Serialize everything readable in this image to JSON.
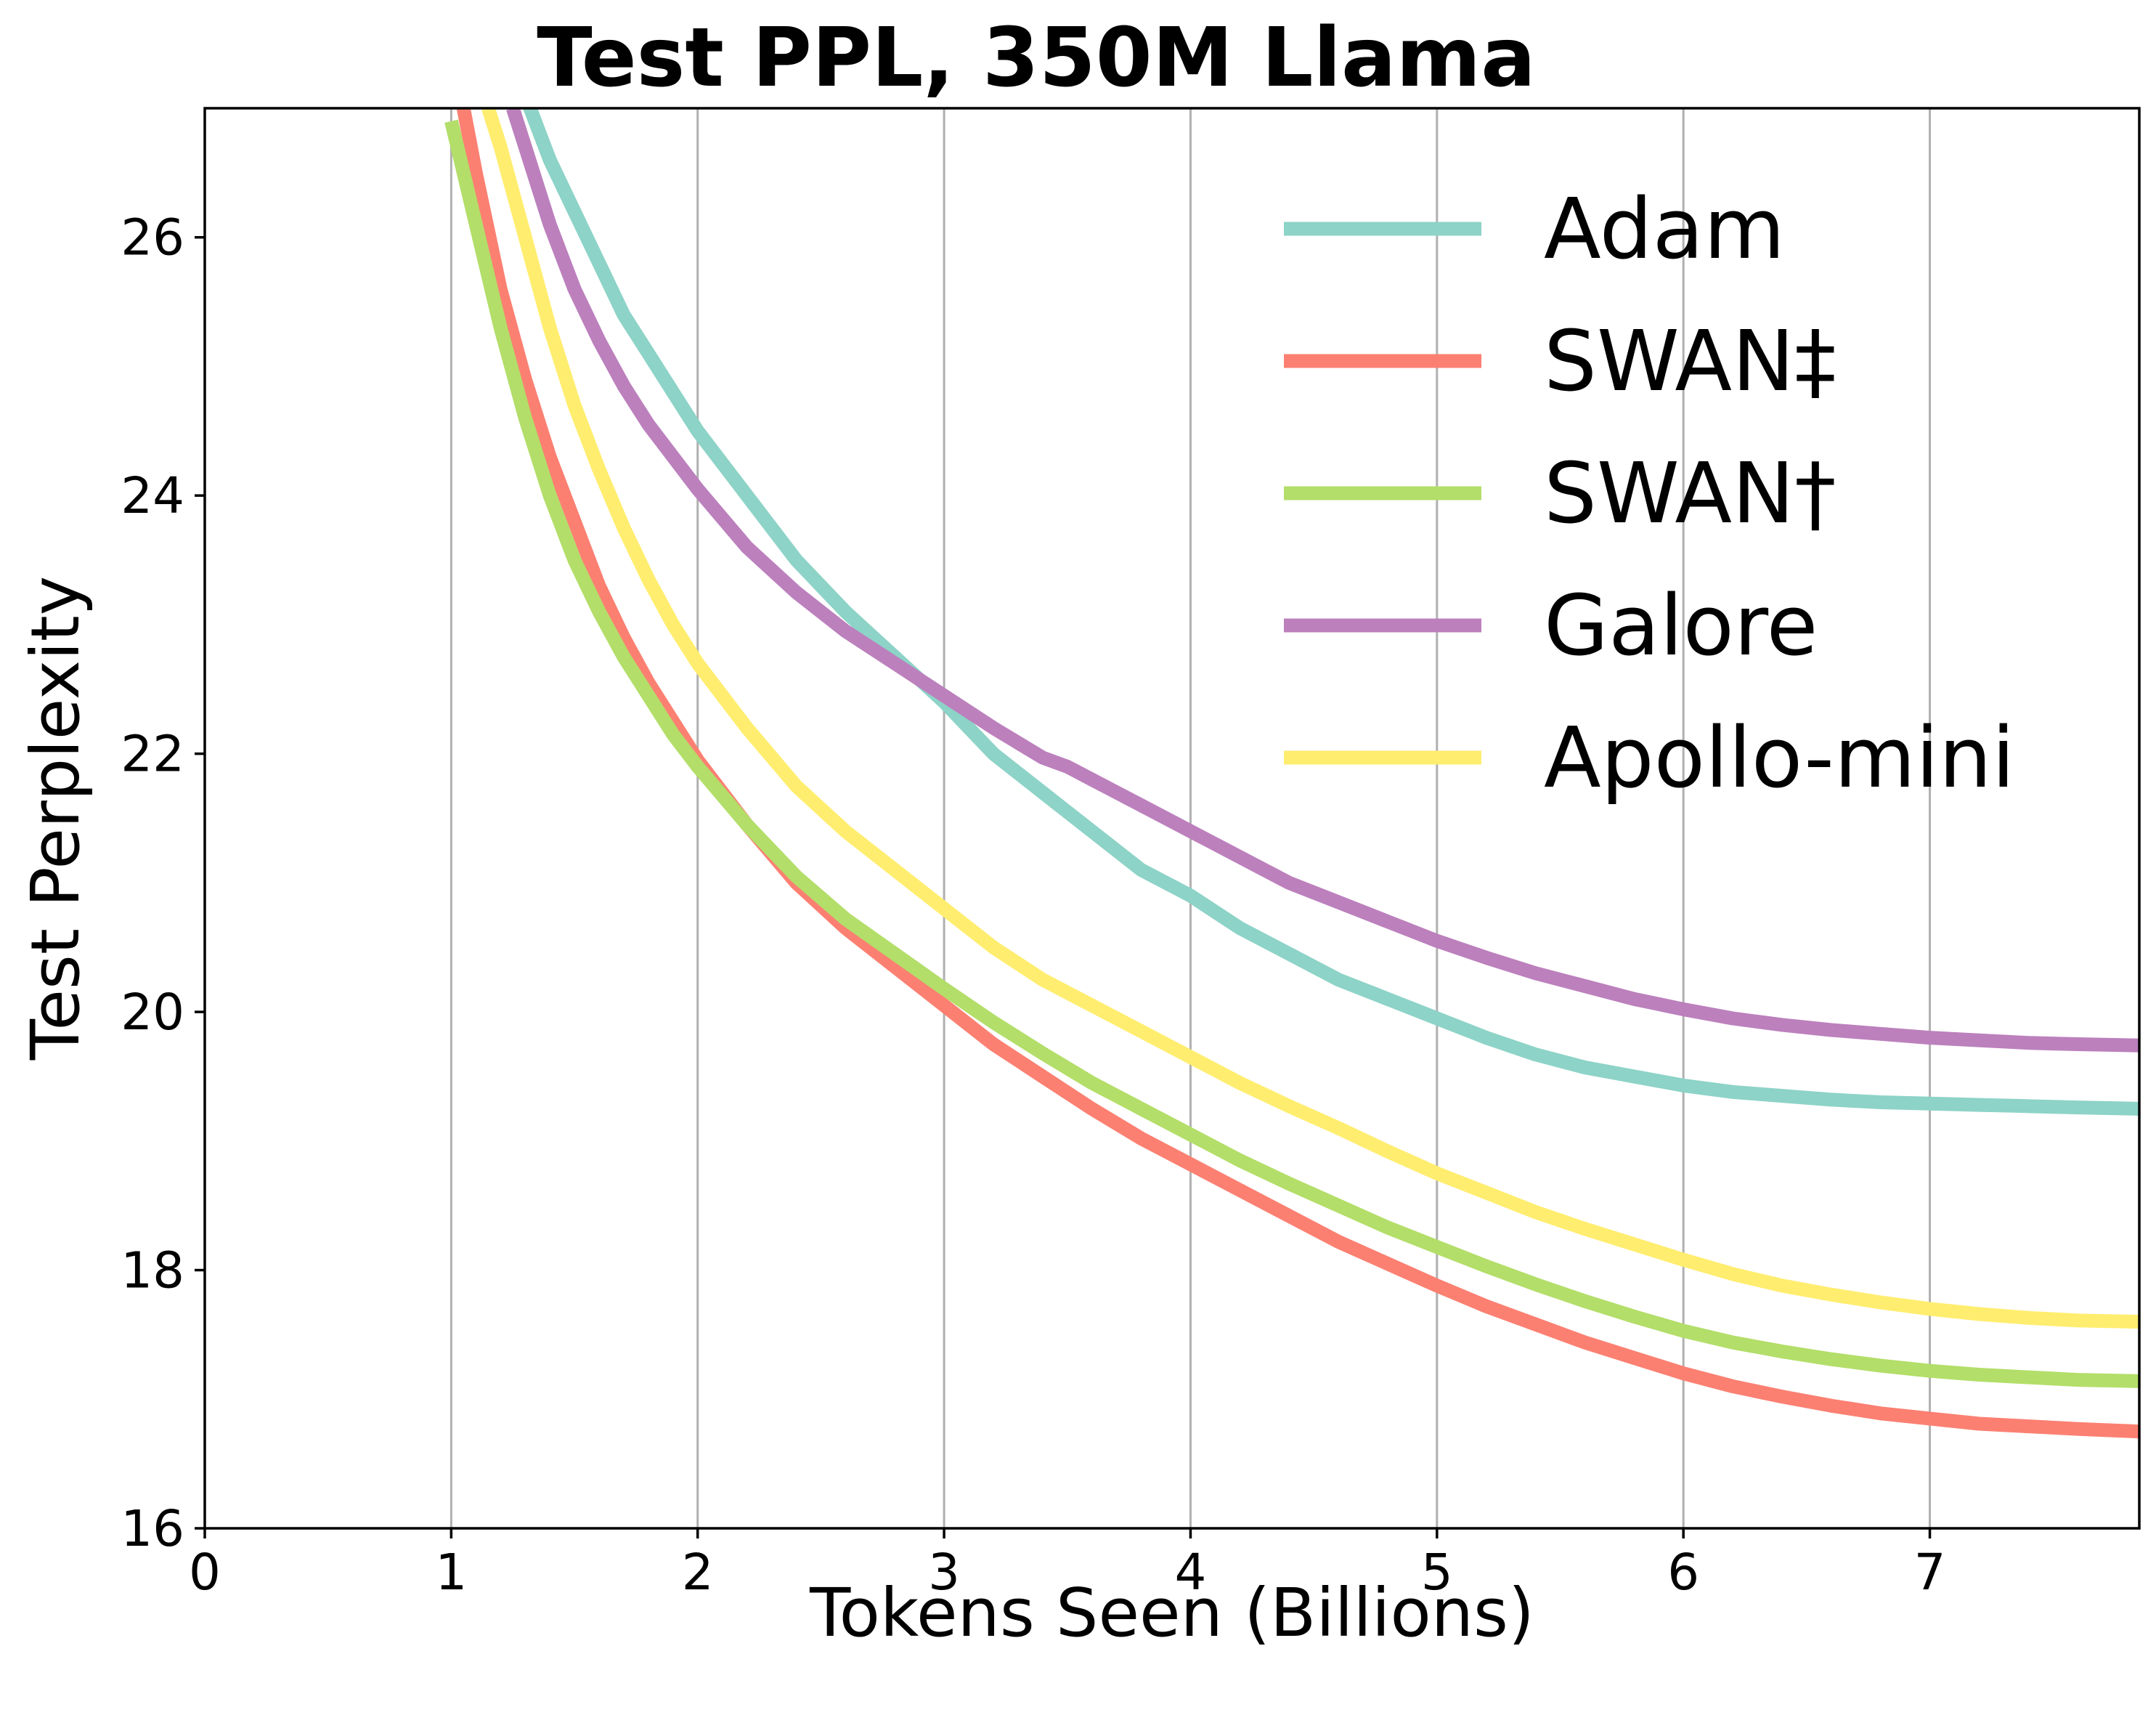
{
  "chart_data": {
    "type": "line",
    "title": "Test PPL, 350M Llama",
    "xlabel": "Tokens Seen (Billions)",
    "ylabel": "Test Perplexity",
    "xlim": [
      0,
      7.85
    ],
    "ylim": [
      16,
      27
    ],
    "xticks": [
      "0",
      "1",
      "2",
      "3",
      "4",
      "5",
      "6",
      "7"
    ],
    "yticks": [
      "16",
      "18",
      "20",
      "22",
      "24",
      "26"
    ],
    "grid": "vertical",
    "legend_position": "top-right",
    "series": [
      {
        "name": "Adam",
        "color": "#8dd3c7",
        "x": [
          1.3,
          1.4,
          1.5,
          1.6,
          1.7,
          1.8,
          1.9,
          2.0,
          2.2,
          2.4,
          2.6,
          2.8,
          3.0,
          3.2,
          3.4,
          3.6,
          3.8,
          4.0,
          4.2,
          4.4,
          4.6,
          4.8,
          5.0,
          5.2,
          5.4,
          5.6,
          5.8,
          6.0,
          6.2,
          6.4,
          6.6,
          6.8,
          7.0,
          7.2,
          7.4,
          7.6,
          7.85
        ],
        "y": [
          27.1,
          26.6,
          26.2,
          25.8,
          25.4,
          25.1,
          24.8,
          24.5,
          24.0,
          23.5,
          23.1,
          22.75,
          22.4,
          22.0,
          21.7,
          21.4,
          21.1,
          20.9,
          20.65,
          20.45,
          20.25,
          20.1,
          19.95,
          19.8,
          19.67,
          19.57,
          19.5,
          19.43,
          19.38,
          19.35,
          19.32,
          19.3,
          19.29,
          19.28,
          19.27,
          19.26,
          19.25
        ]
      },
      {
        "name": "SWAN‡",
        "color": "#fb8072",
        "x": [
          1.05,
          1.1,
          1.2,
          1.3,
          1.4,
          1.5,
          1.6,
          1.7,
          1.8,
          1.9,
          2.0,
          2.2,
          2.4,
          2.6,
          2.8,
          3.0,
          3.2,
          3.4,
          3.6,
          3.8,
          4.0,
          4.2,
          4.4,
          4.6,
          4.8,
          5.0,
          5.2,
          5.4,
          5.6,
          5.8,
          6.0,
          6.2,
          6.4,
          6.6,
          6.8,
          7.0,
          7.2,
          7.4,
          7.6,
          7.85
        ],
        "y": [
          27.0,
          26.5,
          25.6,
          24.9,
          24.3,
          23.8,
          23.3,
          22.9,
          22.55,
          22.25,
          21.95,
          21.45,
          21.0,
          20.65,
          20.35,
          20.05,
          19.75,
          19.5,
          19.25,
          19.02,
          18.82,
          18.62,
          18.42,
          18.22,
          18.05,
          17.88,
          17.72,
          17.58,
          17.44,
          17.32,
          17.2,
          17.1,
          17.02,
          16.95,
          16.89,
          16.85,
          16.81,
          16.79,
          16.77,
          16.75
        ]
      },
      {
        "name": "SWAN†",
        "color": "#b3de69",
        "x": [
          1.0,
          1.1,
          1.2,
          1.3,
          1.4,
          1.5,
          1.6,
          1.7,
          1.8,
          1.9,
          2.0,
          2.2,
          2.4,
          2.6,
          2.8,
          3.0,
          3.2,
          3.4,
          3.6,
          3.8,
          4.0,
          4.2,
          4.4,
          4.6,
          4.8,
          5.0,
          5.2,
          5.4,
          5.6,
          5.8,
          6.0,
          6.2,
          6.4,
          6.6,
          6.8,
          7.0,
          7.2,
          7.4,
          7.6,
          7.85
        ],
        "y": [
          26.9,
          26.1,
          25.3,
          24.6,
          24.0,
          23.5,
          23.1,
          22.75,
          22.45,
          22.15,
          21.9,
          21.45,
          21.05,
          20.72,
          20.45,
          20.18,
          19.92,
          19.68,
          19.45,
          19.25,
          19.05,
          18.85,
          18.67,
          18.5,
          18.33,
          18.18,
          18.03,
          17.89,
          17.76,
          17.64,
          17.53,
          17.44,
          17.37,
          17.31,
          17.26,
          17.22,
          17.19,
          17.17,
          17.15,
          17.14
        ]
      },
      {
        "name": "Galore",
        "color": "#bc80bd",
        "x": [
          1.25,
          1.3,
          1.4,
          1.5,
          1.6,
          1.7,
          1.8,
          1.9,
          2.0,
          2.2,
          2.4,
          2.6,
          2.8,
          3.0,
          3.2,
          3.4,
          3.5,
          3.6,
          3.8,
          4.0,
          4.2,
          4.4,
          4.6,
          4.8,
          5.0,
          5.2,
          5.4,
          5.6,
          5.8,
          6.0,
          6.2,
          6.4,
          6.6,
          6.8,
          7.0,
          7.2,
          7.4,
          7.6,
          7.85
        ],
        "y": [
          27.0,
          26.7,
          26.1,
          25.6,
          25.2,
          24.85,
          24.55,
          24.3,
          24.05,
          23.6,
          23.25,
          22.95,
          22.7,
          22.45,
          22.2,
          21.97,
          21.9,
          21.8,
          21.6,
          21.4,
          21.2,
          21.0,
          20.85,
          20.7,
          20.55,
          20.42,
          20.3,
          20.2,
          20.1,
          20.02,
          19.95,
          19.9,
          19.86,
          19.83,
          19.8,
          19.78,
          19.76,
          19.75,
          19.74
        ]
      },
      {
        "name": "Apollo-mini",
        "color": "#ffed6f",
        "x": [
          1.15,
          1.2,
          1.3,
          1.4,
          1.5,
          1.6,
          1.7,
          1.8,
          1.9,
          2.0,
          2.2,
          2.4,
          2.6,
          2.8,
          3.0,
          3.2,
          3.4,
          3.6,
          3.8,
          4.0,
          4.2,
          4.4,
          4.6,
          4.8,
          5.0,
          5.2,
          5.4,
          5.6,
          5.8,
          6.0,
          6.2,
          6.4,
          6.6,
          6.8,
          7.0,
          7.2,
          7.4,
          7.6,
          7.85
        ],
        "y": [
          27.0,
          26.7,
          26.0,
          25.3,
          24.7,
          24.2,
          23.75,
          23.35,
          23.0,
          22.7,
          22.2,
          21.75,
          21.4,
          21.1,
          20.8,
          20.5,
          20.25,
          20.05,
          19.85,
          19.65,
          19.45,
          19.27,
          19.1,
          18.92,
          18.75,
          18.6,
          18.45,
          18.32,
          18.2,
          18.08,
          17.97,
          17.88,
          17.81,
          17.75,
          17.7,
          17.66,
          17.63,
          17.61,
          17.6
        ]
      }
    ]
  }
}
